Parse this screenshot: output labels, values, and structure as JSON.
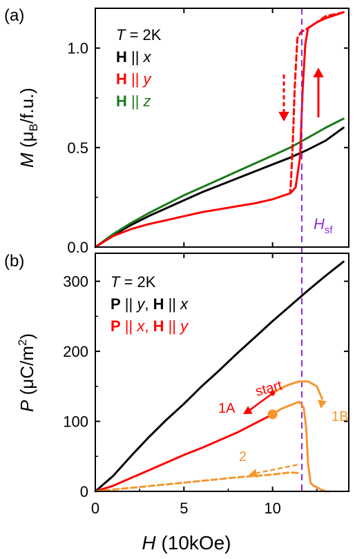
{
  "panel_a": {
    "label": "(a)",
    "legend": [
      {
        "prefix": "T",
        "text": " = 2K",
        "color": "#000000"
      },
      {
        "bold": "H",
        "mid": " || ",
        "ital": "x",
        "color": "#000000"
      },
      {
        "bold": "H",
        "mid": " || ",
        "ital": "y",
        "color": "#ff0000"
      },
      {
        "bold": "H",
        "mid": " || ",
        "ital": "z",
        "color": "#1a7a1a"
      }
    ],
    "hsf_label_main": "H",
    "hsf_label_sub": "sf",
    "ylabel_main": "M",
    "ylabel_rest_1": " (μ",
    "ylabel_sub": "B",
    "ylabel_rest_2": "/f.u.)"
  },
  "panel_b": {
    "label": "(b)",
    "legend": [
      {
        "prefix": "T",
        "text": " = 2K",
        "color": "#000000"
      },
      {
        "bold": "P",
        "mid": " || ",
        "ital": "y",
        "sep": ", ",
        "bold2": "H",
        "mid2": " || ",
        "ital2": "x",
        "color": "#000000"
      },
      {
        "bold": "P",
        "mid": " || ",
        "ital": "x",
        "sep": ", ",
        "bold2": "H",
        "mid2": " || ",
        "ital2": "y",
        "color": "#ff0000"
      }
    ],
    "annotations": {
      "start": "start",
      "a1": "1A",
      "b1": "1B",
      "two": "2"
    },
    "ylabel_main": "P",
    "ylabel_rest": " (μC/m",
    "ylabel_sup": "2",
    "ylabel_end": ")"
  },
  "xlabel_main": "H",
  "xlabel_rest": " (10kOe)",
  "colors": {
    "black": "#000000",
    "red": "#ff0000",
    "green": "#1a7a1a",
    "orange": "#f5962e",
    "purple": "#8a2be2"
  },
  "chart_data": [
    {
      "type": "line",
      "panel": "(a)",
      "xlabel": "H (10kOe)",
      "ylabel": "M (μB/f.u.)",
      "xlim": [
        0,
        14.3
      ],
      "ylim": [
        0,
        1.2
      ],
      "xticks": [
        0,
        5,
        10
      ],
      "yticks": [
        0.0,
        0.5,
        1.0
      ],
      "ytick_labels": [
        "0.0",
        "0.5",
        "1.0"
      ],
      "vline": {
        "x": 11.65,
        "label": "Hsf",
        "style": "dashed"
      },
      "series": [
        {
          "name": "H || x",
          "color": "#000000",
          "style": "solid",
          "x": [
            0,
            1,
            2,
            3,
            4,
            5,
            6,
            7,
            8,
            9,
            10,
            11,
            12,
            13,
            14
          ],
          "y": [
            0,
            0.06,
            0.11,
            0.155,
            0.195,
            0.235,
            0.275,
            0.31,
            0.345,
            0.38,
            0.415,
            0.45,
            0.49,
            0.535,
            0.6
          ]
        },
        {
          "name": "H || z",
          "color": "#1a7a1a",
          "style": "solid",
          "x": [
            0,
            1,
            2,
            3,
            4,
            5,
            6,
            7,
            8,
            9,
            10,
            11,
            12,
            13,
            14
          ],
          "y": [
            0,
            0.065,
            0.12,
            0.17,
            0.215,
            0.26,
            0.3,
            0.34,
            0.38,
            0.42,
            0.46,
            0.5,
            0.55,
            0.6,
            0.645
          ]
        },
        {
          "name": "H || y (up sweep)",
          "color": "#ff0000",
          "style": "solid",
          "x": [
            0,
            1,
            2,
            3,
            4,
            5,
            6,
            7,
            8,
            9,
            10,
            11,
            11.3,
            11.55,
            11.7,
            11.85,
            12.0,
            12.5,
            13,
            14
          ],
          "y": [
            0,
            0.055,
            0.09,
            0.115,
            0.135,
            0.155,
            0.175,
            0.19,
            0.205,
            0.22,
            0.24,
            0.27,
            0.3,
            0.45,
            0.8,
            1.02,
            1.1,
            1.13,
            1.15,
            1.18
          ]
        },
        {
          "name": "H || y (down sweep)",
          "color": "#ff0000",
          "style": "dashed",
          "x": [
            14,
            13,
            12.5,
            12,
            11.6,
            11.4,
            11.25,
            11.15,
            11.05,
            11.0
          ],
          "y": [
            1.18,
            1.16,
            1.13,
            1.1,
            1.08,
            1.05,
            0.8,
            0.55,
            0.35,
            0.28
          ]
        }
      ]
    },
    {
      "type": "line",
      "panel": "(b)",
      "xlabel": "H (10kOe)",
      "ylabel": "P (μC/m2)",
      "xlim": [
        0,
        14.3
      ],
      "ylim": [
        0,
        340
      ],
      "xticks": [
        0,
        5,
        10
      ],
      "yticks": [
        0,
        100,
        200,
        300
      ],
      "vline": {
        "x": 11.65,
        "style": "dashed"
      },
      "series": [
        {
          "name": "P || y, H || x",
          "color": "#000000",
          "style": "solid",
          "x": [
            0,
            1,
            2,
            3,
            4,
            5,
            6,
            7,
            8,
            9,
            10,
            11,
            12,
            13,
            14
          ],
          "y": [
            0,
            22,
            50,
            77,
            102,
            125,
            150,
            173,
            197,
            220,
            243,
            265,
            287,
            308,
            328
          ]
        },
        {
          "name": "P || x, H || y",
          "color": "#ff0000",
          "style": "solid",
          "x": [
            0,
            1,
            2,
            3,
            4,
            5,
            6,
            7,
            8,
            9,
            10
          ],
          "y": [
            0,
            8,
            19,
            30,
            41,
            52,
            62,
            73,
            84,
            97,
            110
          ]
        },
        {
          "name": "1A / 1B",
          "color": "#f5962e",
          "style": "solid",
          "x": [
            10,
            10.5,
            11,
            11.5,
            11.75,
            11.9,
            12.0,
            12.15,
            12.3,
            12.5,
            12.7,
            13.0,
            13.2
          ],
          "y": [
            110,
            118,
            123,
            128,
            120,
            90,
            40,
            12,
            8,
            6,
            3,
            0,
            0
          ]
        },
        {
          "name": "start path",
          "color": "#f5962e",
          "style": "solid",
          "x": [
            10,
            10.5,
            11,
            11.5,
            12,
            12.5,
            12.8
          ],
          "y": [
            140,
            148,
            153,
            157,
            157,
            150,
            132
          ]
        },
        {
          "name": "2",
          "color": "#f5962e",
          "style": "dashed",
          "x": [
            0,
            2,
            4,
            6,
            8,
            10,
            11,
            11.5
          ],
          "y": [
            0,
            5,
            10,
            15,
            20,
            24,
            27,
            26
          ]
        }
      ],
      "points": [
        {
          "x": 10,
          "y": 110,
          "label": "",
          "size": "large"
        },
        {
          "x": 10,
          "y": 140,
          "label": "start",
          "size": "small"
        }
      ]
    }
  ]
}
